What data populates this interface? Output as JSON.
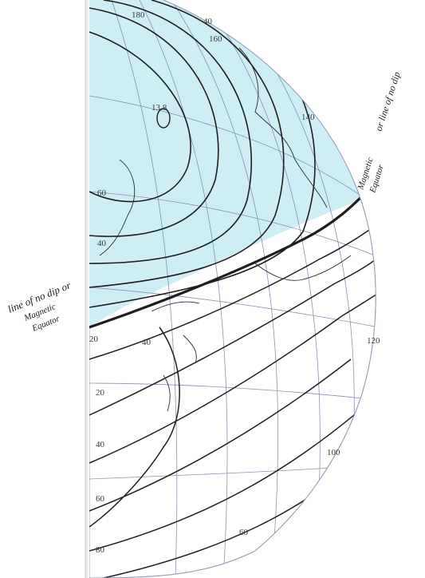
{
  "map": {
    "labels": {
      "left_line_of_no_dip": "line of no dip or",
      "left_magnetic": "Magnetic",
      "left_equator": "Equator",
      "right_magnetic": "Magnetic",
      "right_equator": "Equator",
      "right_or_line_of_no_dip": "or line of no dip"
    },
    "pole_value": "13.8",
    "tick_labels": [
      {
        "id": "t180",
        "text": "180"
      },
      {
        "id": "t40a",
        "text": "40"
      },
      {
        "id": "t160",
        "text": "160"
      },
      {
        "id": "t140",
        "text": "140"
      },
      {
        "id": "t60a",
        "text": "60"
      },
      {
        "id": "t40b",
        "text": "40"
      },
      {
        "id": "t20a",
        "text": "20"
      },
      {
        "id": "t40c",
        "text": "40"
      },
      {
        "id": "t20b",
        "text": "20"
      },
      {
        "id": "t40d",
        "text": "40"
      },
      {
        "id": "t60b",
        "text": "60"
      },
      {
        "id": "t60c",
        "text": "60"
      },
      {
        "id": "t80",
        "text": "80"
      },
      {
        "id": "t100",
        "text": "100"
      },
      {
        "id": "t120",
        "text": "120"
      }
    ],
    "colors": {
      "northern_region": "#cdeef4",
      "isoline": "#1e1e1e",
      "graticule": "#8a8fb8",
      "coast": "#2a2a2a",
      "background": "#ffffff"
    }
  }
}
